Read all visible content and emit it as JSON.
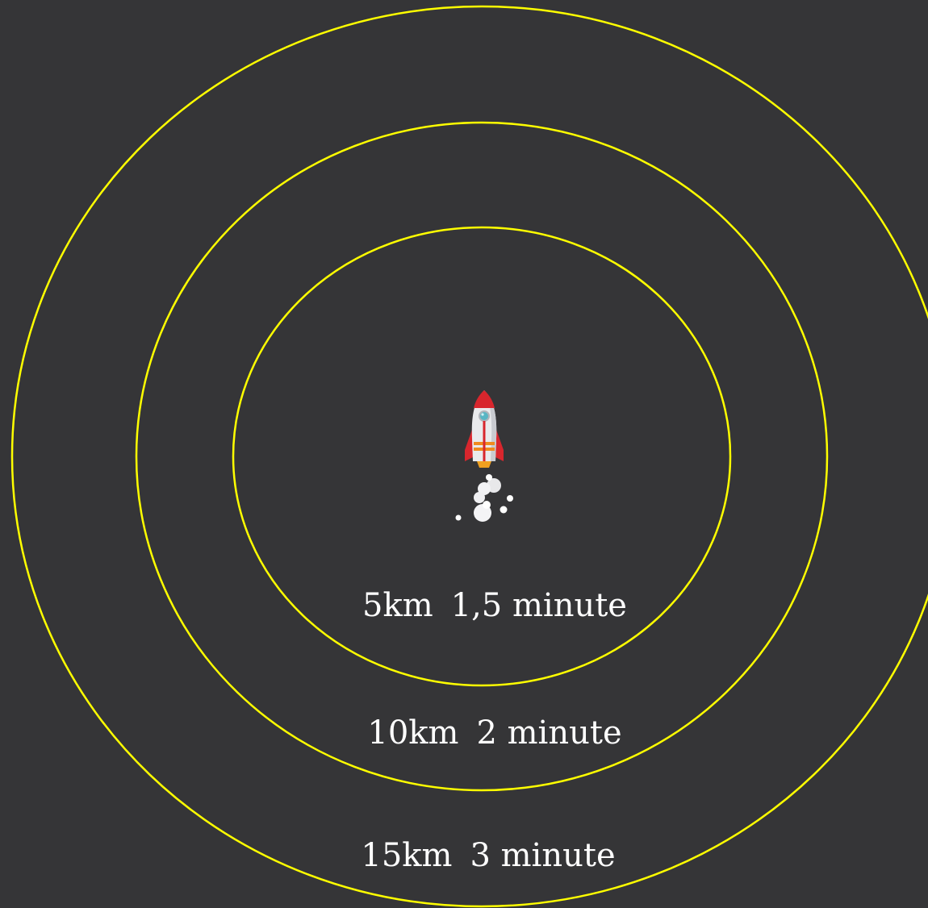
{
  "colors": {
    "background": "#353537",
    "ring": "#ffff00",
    "text": "#ffffff"
  },
  "center_icon": "rocket-icon",
  "rings": [
    {
      "distance": "5km",
      "time": "1,5 minute"
    },
    {
      "distance": "10km",
      "time": "2 minute"
    },
    {
      "distance": "15km",
      "time": "3 minute"
    }
  ]
}
